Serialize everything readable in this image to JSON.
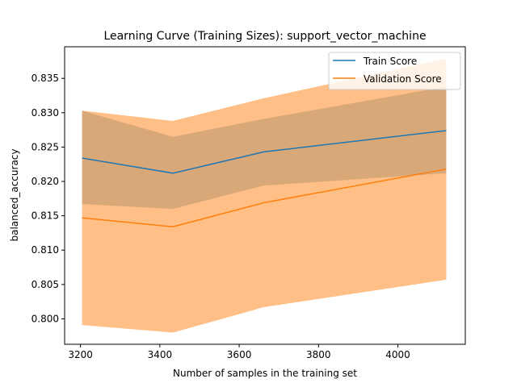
{
  "chart_data": {
    "type": "line",
    "title": "Learning Curve (Training Sizes): support_vector_machine",
    "xlabel": "Number of samples in the training set",
    "ylabel": "balanced_accuracy",
    "xlim": [
      3160,
      4170
    ],
    "ylim": [
      0.7963,
      0.8396
    ],
    "x_ticks": [
      3200,
      3400,
      3600,
      3800,
      4000
    ],
    "y_ticks": [
      0.8,
      0.805,
      0.81,
      0.815,
      0.82,
      0.825,
      0.83,
      0.835
    ],
    "x_tick_labels": [
      "3200",
      "3400",
      "3600",
      "3800",
      "4000"
    ],
    "y_tick_labels": [
      "0.800",
      "0.805",
      "0.810",
      "0.815",
      "0.820",
      "0.825",
      "0.830",
      "0.835"
    ],
    "grid": false,
    "legend_position": "top-right",
    "x": [
      3204,
      3433,
      3662,
      4122
    ],
    "series": [
      {
        "name": "Train Score",
        "color": "#1f77b4",
        "values": [
          0.8234,
          0.8212,
          0.8243,
          0.8274
        ],
        "band_lower": [
          0.8167,
          0.816,
          0.8194,
          0.8212
        ],
        "band_upper": [
          0.8303,
          0.8265,
          0.8291,
          0.8338
        ]
      },
      {
        "name": "Validation Score",
        "color": "#ff7f0e",
        "values": [
          0.8147,
          0.8134,
          0.8169,
          0.8218
        ],
        "band_lower": [
          0.7991,
          0.798,
          0.8017,
          0.8057
        ],
        "band_upper": [
          0.8303,
          0.8288,
          0.8321,
          0.8379
        ]
      }
    ]
  }
}
